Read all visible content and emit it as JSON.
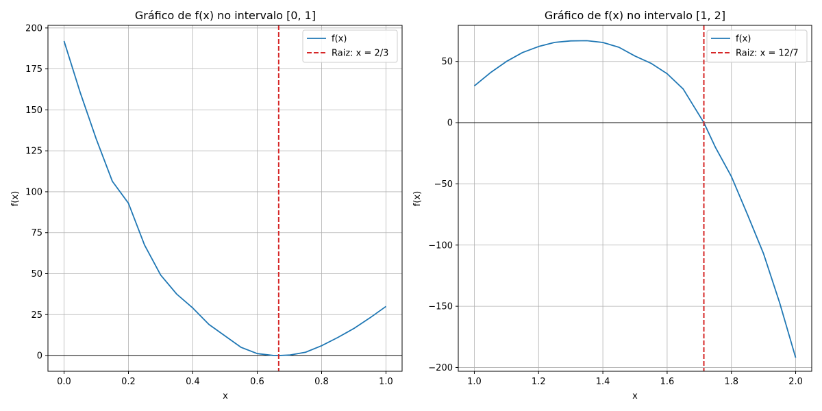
{
  "chart_data": [
    {
      "type": "line",
      "title": "Gráfico de f(x) no intervalo [0, 1]",
      "xlabel": "x",
      "ylabel": "f(x)",
      "xlim": [
        -0.05,
        1.05
      ],
      "ylim": [
        -9.6,
        201.6
      ],
      "xticks": [
        0.0,
        0.2,
        0.4,
        0.6,
        0.8,
        1.0
      ],
      "xtick_labels": [
        "0.0",
        "0.2",
        "0.4",
        "0.6",
        "0.8",
        "1.0"
      ],
      "yticks": [
        0,
        25,
        50,
        75,
        100,
        125,
        150,
        175,
        200
      ],
      "ytick_labels": [
        "0",
        "25",
        "50",
        "75",
        "100",
        "125",
        "150",
        "175",
        "200"
      ],
      "grid": true,
      "legend_position": "top-right",
      "series": [
        {
          "name": "f(x)",
          "color": "#1f77b4",
          "x": [
            0.0,
            0.05,
            0.1,
            0.15,
            0.2,
            0.25,
            0.3,
            0.35,
            0.4,
            0.45,
            0.5,
            0.55,
            0.6,
            0.65,
            0.6667,
            0.7,
            0.75,
            0.8,
            0.85,
            0.9,
            0.95,
            1.0
          ],
          "y": [
            192.0,
            160.7,
            132.2,
            106.4,
            93.0,
            67.5,
            49.2,
            37.5,
            29.0,
            19.0,
            12.0,
            5.0,
            1.2,
            0.04,
            0.0,
            0.3,
            2.0,
            6.0,
            11.0,
            16.5,
            23.0,
            30.0
          ]
        }
      ],
      "vline": {
        "name": "Raiz: x = 2/3",
        "x": 0.6667,
        "color": "#d62728",
        "style": "dashed"
      },
      "hline": {
        "y": 0,
        "color": "#000000"
      }
    },
    {
      "type": "line",
      "title": "Gráfico de f(x) no intervalo [1, 2]",
      "xlabel": "x",
      "ylabel": "f(x)",
      "xlim": [
        0.95,
        2.05
      ],
      "ylim": [
        -203.1,
        79.5
      ],
      "xticks": [
        1.0,
        1.2,
        1.4,
        1.6,
        1.8,
        2.0
      ],
      "xtick_labels": [
        "1.0",
        "1.2",
        "1.4",
        "1.6",
        "1.8",
        "2.0"
      ],
      "yticks": [
        -200,
        -150,
        -100,
        -50,
        0,
        50
      ],
      "ytick_labels": [
        "−200",
        "−150",
        "−100",
        "−50",
        "0",
        "50"
      ],
      "grid": true,
      "legend_position": "top-right",
      "series": [
        {
          "name": "f(x)",
          "color": "#1f77b4",
          "x": [
            1.0,
            1.05,
            1.1,
            1.15,
            1.2,
            1.25,
            1.3,
            1.35,
            1.4,
            1.45,
            1.5,
            1.55,
            1.6,
            1.65,
            1.7143,
            1.75,
            1.8,
            1.85,
            1.9,
            1.95,
            2.0
          ],
          "y": [
            30.0,
            40.8,
            50.0,
            57.3,
            62.2,
            65.6,
            66.8,
            67.0,
            65.5,
            61.6,
            54.4,
            48.5,
            40.0,
            27.5,
            0.0,
            -20.0,
            -44.0,
            -75.0,
            -107.0,
            -147.0,
            -192.0
          ]
        }
      ],
      "vline": {
        "name": "Raiz: x = 12/7",
        "x": 1.7143,
        "color": "#d62728",
        "style": "dashed"
      },
      "hline": {
        "y": 0,
        "color": "#000000"
      }
    }
  ]
}
